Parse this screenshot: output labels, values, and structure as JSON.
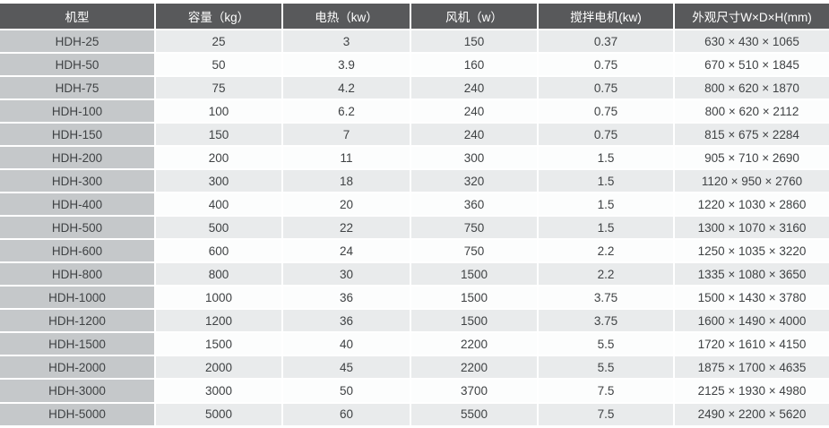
{
  "table": {
    "headers": [
      "机型",
      "容量（kg）",
      "电热（kw）",
      "风机（w）",
      "搅拌电机(kw)",
      "外观尺寸W×D×H(mm)"
    ],
    "rows": [
      [
        "HDH-25",
        "25",
        "3",
        "150",
        "0.37",
        "630 × 430 × 1065"
      ],
      [
        "HDH-50",
        "50",
        "3.9",
        "160",
        "0.75",
        "670 × 510 × 1845"
      ],
      [
        "HDH-75",
        "75",
        "4.2",
        "240",
        "0.75",
        "800 × 620 × 1870"
      ],
      [
        "HDH-100",
        "100",
        "6.2",
        "240",
        "0.75",
        "800 × 620 × 2112"
      ],
      [
        "HDH-150",
        "150",
        "7",
        "240",
        "0.75",
        "815 × 675 × 2284"
      ],
      [
        "HDH-200",
        "200",
        "11",
        "300",
        "1.5",
        "905 × 710 × 2690"
      ],
      [
        "HDH-300",
        "300",
        "18",
        "320",
        "1.5",
        "1120 × 950 × 2760"
      ],
      [
        "HDH-400",
        "400",
        "20",
        "360",
        "1.5",
        "1220 × 1030 × 2860"
      ],
      [
        "HDH-500",
        "500",
        "22",
        "750",
        "1.5",
        "1300 × 1070 × 3160"
      ],
      [
        "HDH-600",
        "600",
        "24",
        "750",
        "2.2",
        "1250 × 1035 × 3220"
      ],
      [
        "HDH-800",
        "800",
        "30",
        "1500",
        "2.2",
        "1335 × 1080 × 3650"
      ],
      [
        "HDH-1000",
        "1000",
        "36",
        "1500",
        "3.75",
        "1500 × 1430 × 3780"
      ],
      [
        "HDH-1200",
        "1200",
        "36",
        "1500",
        "3.75",
        "1600 × 1490 × 4000"
      ],
      [
        "HDH-1500",
        "1500",
        "40",
        "2200",
        "5.5",
        "1720 × 1610 × 4150"
      ],
      [
        "HDH-2000",
        "2000",
        "45",
        "2200",
        "5.5",
        "1875 × 1700 × 4635"
      ],
      [
        "HDH-3000",
        "3000",
        "50",
        "3700",
        "7.5",
        "2125 × 1930 × 4980"
      ],
      [
        "HDH-5000",
        "5000",
        "60",
        "5500",
        "7.5",
        "2490 × 2200 × 5620"
      ]
    ]
  },
  "colors": {
    "header_bg": "#58595b",
    "header_text": "#ffffff",
    "model_column_bg": "#c5c8ca",
    "row_odd_bg": "#e9ebec",
    "row_even_bg": "#fcfdfd",
    "body_text": "#3f4244",
    "separator": "#ffffff"
  }
}
